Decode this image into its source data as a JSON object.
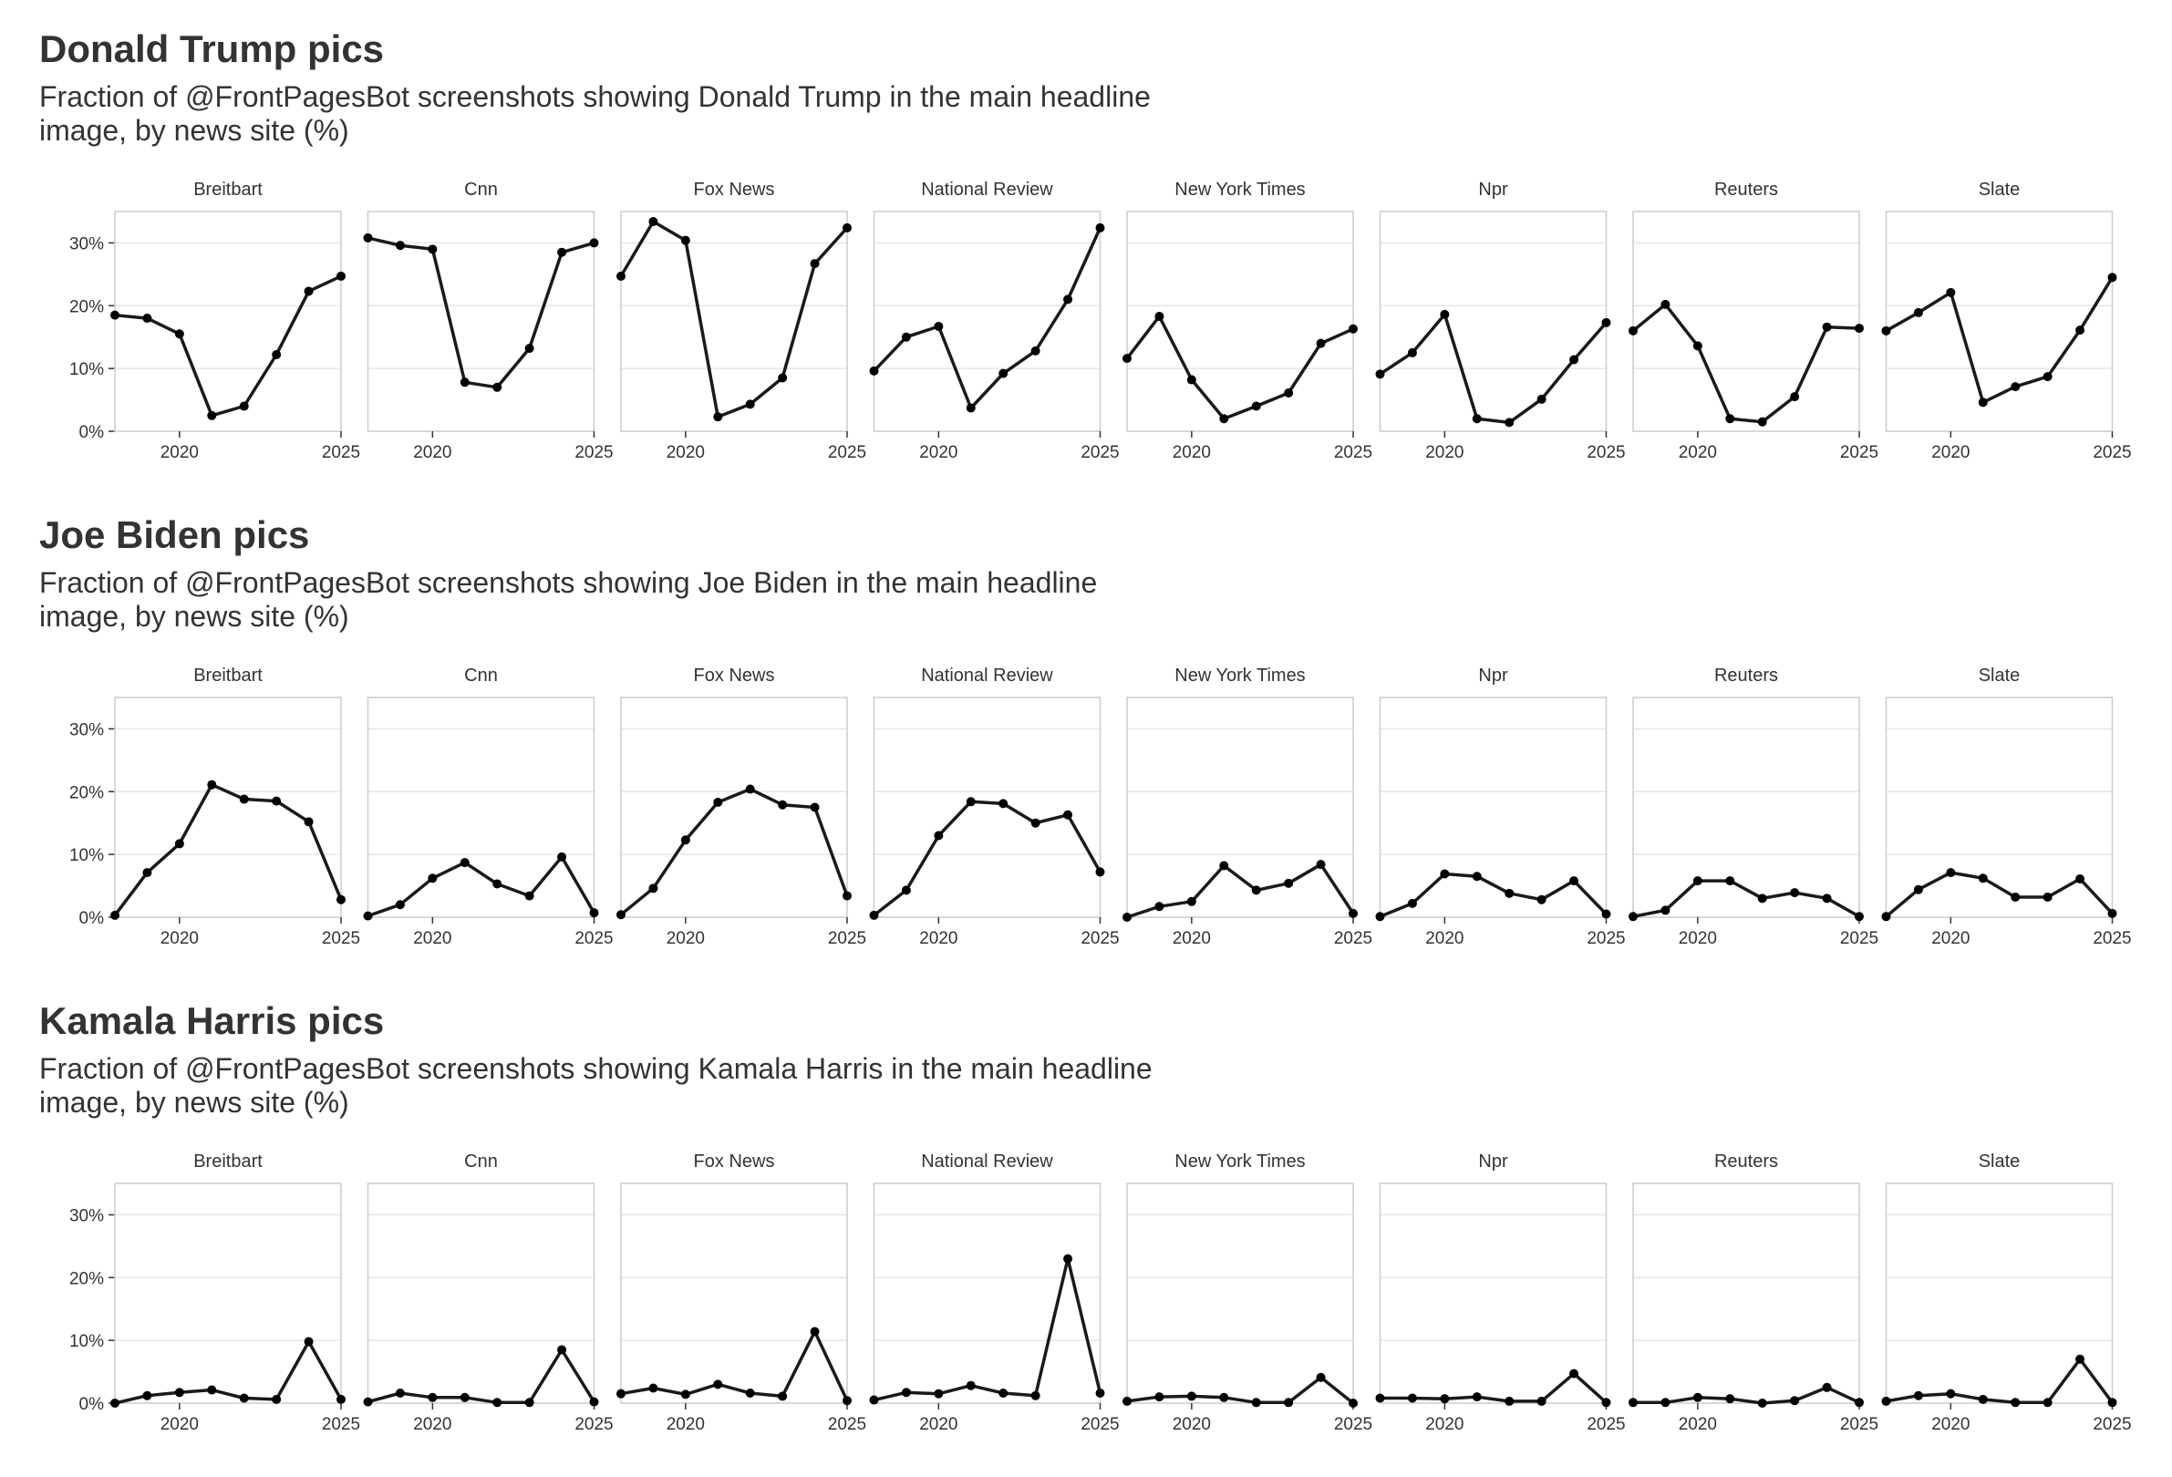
{
  "chart_data": [
    {
      "type": "line",
      "title": "Donald Trump pics",
      "subtitle": "Fraction of @FrontPagesBot screenshots showing Donald Trump in the main headline image, by news site (%)",
      "x": [
        2018,
        2019,
        2020,
        2021,
        2022,
        2023,
        2024,
        2025
      ],
      "x_ticks": [
        2020,
        2025
      ],
      "x_tick_labels": [
        "2020",
        "2025"
      ],
      "y_ticks": [
        0,
        10,
        20,
        30
      ],
      "y_tick_labels": [
        "0%",
        "10%",
        "20%",
        "30%"
      ],
      "ylim": [
        0,
        35
      ],
      "grid": true,
      "series": [
        {
          "name": "Breitbart",
          "values": [
            18.5,
            18,
            15.5,
            2.5,
            4,
            12.2,
            22.3,
            24.7
          ]
        },
        {
          "name": "Cnn",
          "values": [
            30.8,
            29.6,
            29,
            7.8,
            7,
            13.2,
            28.5,
            30
          ]
        },
        {
          "name": "Fox News",
          "values": [
            24.7,
            33.4,
            30.4,
            2.3,
            4.3,
            8.5,
            26.7,
            32.4
          ]
        },
        {
          "name": "National Review",
          "values": [
            9.6,
            15,
            16.7,
            3.7,
            9.2,
            12.8,
            21,
            32.4
          ]
        },
        {
          "name": "New York Times",
          "values": [
            11.6,
            18.3,
            8.2,
            2,
            4,
            6.1,
            14,
            16.3
          ]
        },
        {
          "name": "Npr",
          "values": [
            9.1,
            12.5,
            18.6,
            2,
            1.4,
            5.1,
            11.4,
            17.3
          ]
        },
        {
          "name": "Reuters",
          "values": [
            16,
            20.2,
            13.6,
            2,
            1.5,
            5.5,
            16.6,
            16.4
          ]
        },
        {
          "name": "Slate",
          "values": [
            16,
            18.9,
            22.1,
            4.6,
            7.1,
            8.7,
            16.1,
            24.5
          ]
        }
      ]
    },
    {
      "type": "line",
      "title": "Joe Biden pics",
      "subtitle": "Fraction of @FrontPagesBot screenshots showing Joe Biden in the main headline image, by news site (%)",
      "x": [
        2018,
        2019,
        2020,
        2021,
        2022,
        2023,
        2024,
        2025
      ],
      "x_ticks": [
        2020,
        2025
      ],
      "x_tick_labels": [
        "2020",
        "2025"
      ],
      "y_ticks": [
        0,
        10,
        20,
        30
      ],
      "y_tick_labels": [
        "0%",
        "10%",
        "20%",
        "30%"
      ],
      "ylim": [
        0,
        35
      ],
      "grid": true,
      "series": [
        {
          "name": "Breitbart",
          "values": [
            0.3,
            7.1,
            11.7,
            21.1,
            18.8,
            18.5,
            15.2,
            2.8
          ]
        },
        {
          "name": "Cnn",
          "values": [
            0.2,
            2,
            6.2,
            8.7,
            5.3,
            3.4,
            9.6,
            0.7
          ]
        },
        {
          "name": "Fox News",
          "values": [
            0.4,
            4.6,
            12.3,
            18.3,
            20.4,
            17.9,
            17.5,
            3.4
          ]
        },
        {
          "name": "National Review",
          "values": [
            0.3,
            4.3,
            13,
            18.4,
            18.1,
            15,
            16.3,
            7.2
          ]
        },
        {
          "name": "New York Times",
          "values": [
            0,
            1.7,
            2.5,
            8.2,
            4.3,
            5.4,
            8.4,
            0.6
          ]
        },
        {
          "name": "Npr",
          "values": [
            0.1,
            2.2,
            6.9,
            6.5,
            3.8,
            2.8,
            5.8,
            0.5
          ]
        },
        {
          "name": "Reuters",
          "values": [
            0.1,
            1.1,
            5.8,
            5.8,
            3,
            3.9,
            3,
            0.1
          ]
        },
        {
          "name": "Slate",
          "values": [
            0.1,
            4.4,
            7.1,
            6.2,
            3.2,
            3.2,
            6.1,
            0.6
          ]
        }
      ]
    },
    {
      "type": "line",
      "title": "Kamala Harris pics",
      "subtitle": "Fraction of @FrontPagesBot screenshots showing Kamala Harris in the main headline image, by news site (%)",
      "x": [
        2018,
        2019,
        2020,
        2021,
        2022,
        2023,
        2024,
        2025
      ],
      "x_ticks": [
        2020,
        2025
      ],
      "x_tick_labels": [
        "2020",
        "2025"
      ],
      "y_ticks": [
        0,
        10,
        20,
        30
      ],
      "y_tick_labels": [
        "0%",
        "10%",
        "20%",
        "30%"
      ],
      "ylim": [
        0,
        35
      ],
      "grid": true,
      "series": [
        {
          "name": "Breitbart",
          "values": [
            0,
            1.2,
            1.7,
            2.1,
            0.8,
            0.6,
            9.8,
            0.6
          ]
        },
        {
          "name": "Cnn",
          "values": [
            0.2,
            1.6,
            0.9,
            0.9,
            0.1,
            0.1,
            8.5,
            0.2
          ]
        },
        {
          "name": "Fox News",
          "values": [
            1.5,
            2.4,
            1.4,
            3,
            1.6,
            1.1,
            11.4,
            0.4
          ]
        },
        {
          "name": "National Review",
          "values": [
            0.5,
            1.7,
            1.5,
            2.8,
            1.6,
            1.2,
            23,
            1.6
          ]
        },
        {
          "name": "New York Times",
          "values": [
            0.3,
            1,
            1.1,
            0.9,
            0.1,
            0.1,
            4.1,
            0
          ]
        },
        {
          "name": "Npr",
          "values": [
            0.8,
            0.8,
            0.7,
            1,
            0.3,
            0.3,
            4.7,
            0.1
          ]
        },
        {
          "name": "Reuters",
          "values": [
            0.1,
            0.1,
            0.9,
            0.7,
            0,
            0.4,
            2.5,
            0.1
          ]
        },
        {
          "name": "Slate",
          "values": [
            0.3,
            1.2,
            1.5,
            0.6,
            0.1,
            0.1,
            7,
            0.1
          ]
        }
      ]
    }
  ],
  "colors": {
    "line": "#1a1a1a",
    "point": "#000000",
    "panel_border": "#cccccc",
    "gridline": "#e6e6e6",
    "text": "#333333"
  }
}
